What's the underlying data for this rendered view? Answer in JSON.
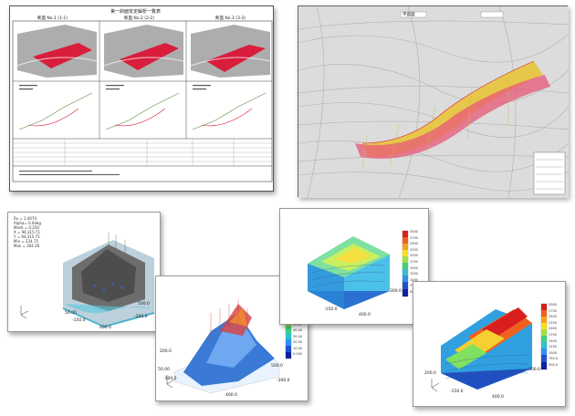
{
  "sheet_report": {
    "title": "第一斜面安定解析一覧表",
    "section_labels": [
      "断面 No.1 (1-1)",
      "断面 No.2 (2-2)",
      "断面 No.3 (3-3)"
    ]
  },
  "plan_map": {
    "label": "平面図"
  },
  "model_a": {
    "info_lines": [
      "Rx = 1.0074",
      "Alpha= 0.0deg",
      "Mesh = 0.250",
      "X = 94,315.71",
      "Y = 94,315.71",
      "Min = 234.75",
      "Max = 304.26"
    ],
    "axis_labels": [
      "500.0",
      "50.00",
      "-150.0",
      "400.0",
      "-200.0"
    ]
  },
  "model_b": {
    "axis_labels": [
      "200.0",
      "50.00",
      "-100.0",
      "400.0",
      "-300.0",
      "500.0"
    ],
    "legend": [
      "100",
      "90.00",
      "80.00",
      "70.00",
      "60.00",
      "50.00",
      "40.00",
      "30.00",
      "20.00",
      "10.00",
      "0.000"
    ]
  },
  "model_c": {
    "axis_labels": [
      "300.0",
      "-150.0",
      "400.0"
    ],
    "legend": [
      "3000",
      "2750",
      "2500",
      "2250",
      "2000",
      "1750",
      "1500",
      "1250",
      "1000",
      "750.0",
      "500.0"
    ]
  },
  "model_d": {
    "axis_labels": [
      "300.0",
      "-150.0",
      "400.0",
      "200.0"
    ],
    "legend": [
      "3000",
      "2750",
      "2500",
      "2250",
      "2000",
      "1750",
      "1500",
      "1250",
      "1000",
      "750.0",
      "500.0"
    ]
  },
  "colors": {
    "red_zone": "#d81e3c",
    "yellow_zone": "#e8c43a",
    "pink_zone": "#e8587a"
  }
}
